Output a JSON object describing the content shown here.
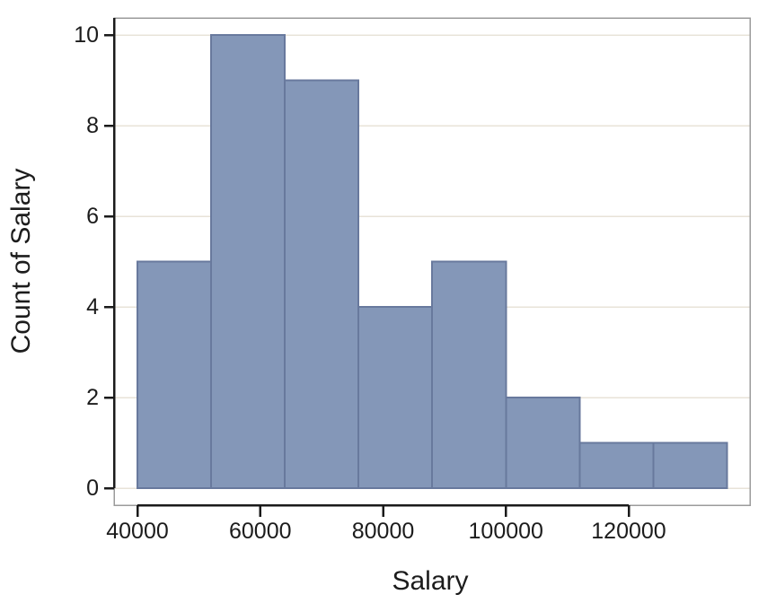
{
  "chart_data": {
    "type": "bar",
    "variant": "histogram",
    "title": "",
    "xlabel": "Salary",
    "ylabel": "Count of Salary",
    "bin_width": 12000,
    "bin_edges": [
      40000,
      52000,
      64000,
      76000,
      88000,
      100000,
      112000,
      124000,
      136000
    ],
    "counts": [
      5,
      10,
      9,
      4,
      5,
      2,
      1,
      1
    ],
    "x_ticks": [
      40000,
      60000,
      80000,
      100000,
      120000
    ],
    "x_tick_labels": [
      "40000",
      "60000",
      "80000",
      "100000",
      "120000"
    ],
    "y_ticks": [
      0,
      2,
      4,
      6,
      8,
      10
    ],
    "y_tick_labels": [
      "0",
      "2",
      "4",
      "6",
      "8",
      "10"
    ],
    "xlim": [
      36200,
      139750
    ],
    "ylim": [
      0,
      10.38
    ],
    "grid": "horizontal",
    "legend": null,
    "colors": {
      "background": "#FFFFFF",
      "bar_fill": "#8497B8",
      "bar_border": "#68799D",
      "gridline": "#E8E3D8",
      "frame": "#9B9B9B",
      "axis_line": "#1A1A1A",
      "text": "#1C1C1C"
    }
  }
}
